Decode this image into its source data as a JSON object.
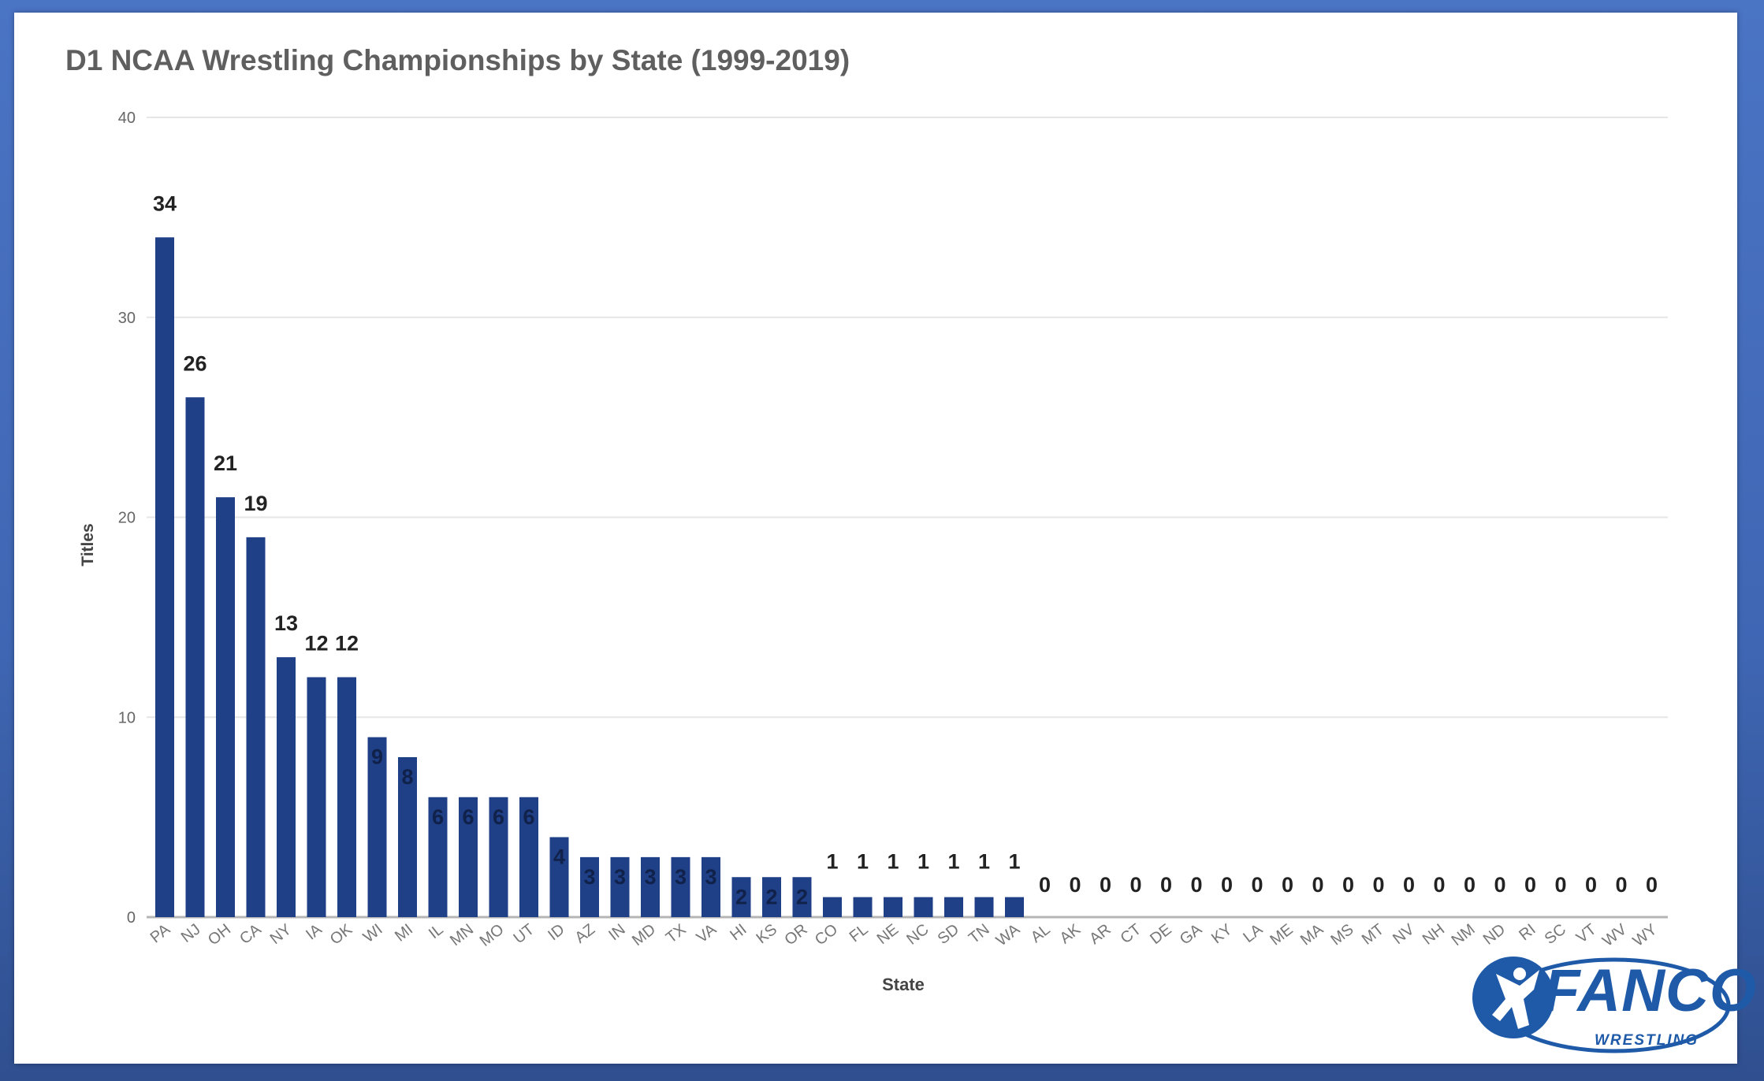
{
  "chart_data": {
    "type": "bar",
    "title": "D1 NCAA Wrestling Championships by State (1999-2019)",
    "xlabel": "State",
    "ylabel": "Titles",
    "ylim": [
      0,
      40
    ],
    "yticks": [
      "0",
      "10",
      "20",
      "30",
      "40"
    ],
    "grid": true,
    "bar_color": "#1f3f87",
    "categories": [
      "PA",
      "NJ",
      "OH",
      "CA",
      "NY",
      "IA",
      "OK",
      "WI",
      "MI",
      "IL",
      "MN",
      "MO",
      "UT",
      "ID",
      "AZ",
      "IN",
      "MD",
      "TX",
      "VA",
      "HI",
      "KS",
      "OR",
      "CO",
      "FL",
      "NE",
      "NC",
      "SD",
      "TN",
      "WA",
      "AL",
      "AK",
      "AR",
      "CT",
      "DE",
      "GA",
      "KY",
      "LA",
      "ME",
      "MA",
      "MS",
      "MT",
      "NV",
      "NH",
      "NM",
      "ND",
      "RI",
      "SC",
      "VT",
      "WV",
      "WY"
    ],
    "values": [
      34,
      26,
      21,
      19,
      13,
      12,
      12,
      9,
      8,
      6,
      6,
      6,
      6,
      4,
      3,
      3,
      3,
      3,
      3,
      2,
      2,
      2,
      1,
      1,
      1,
      1,
      1,
      1,
      1,
      0,
      0,
      0,
      0,
      0,
      0,
      0,
      0,
      0,
      0,
      0,
      0,
      0,
      0,
      0,
      0,
      0,
      0,
      0,
      0,
      0
    ]
  },
  "logo": {
    "name": "FANCO",
    "sub": "WRESTLING",
    "color": "#1f5aa8"
  }
}
